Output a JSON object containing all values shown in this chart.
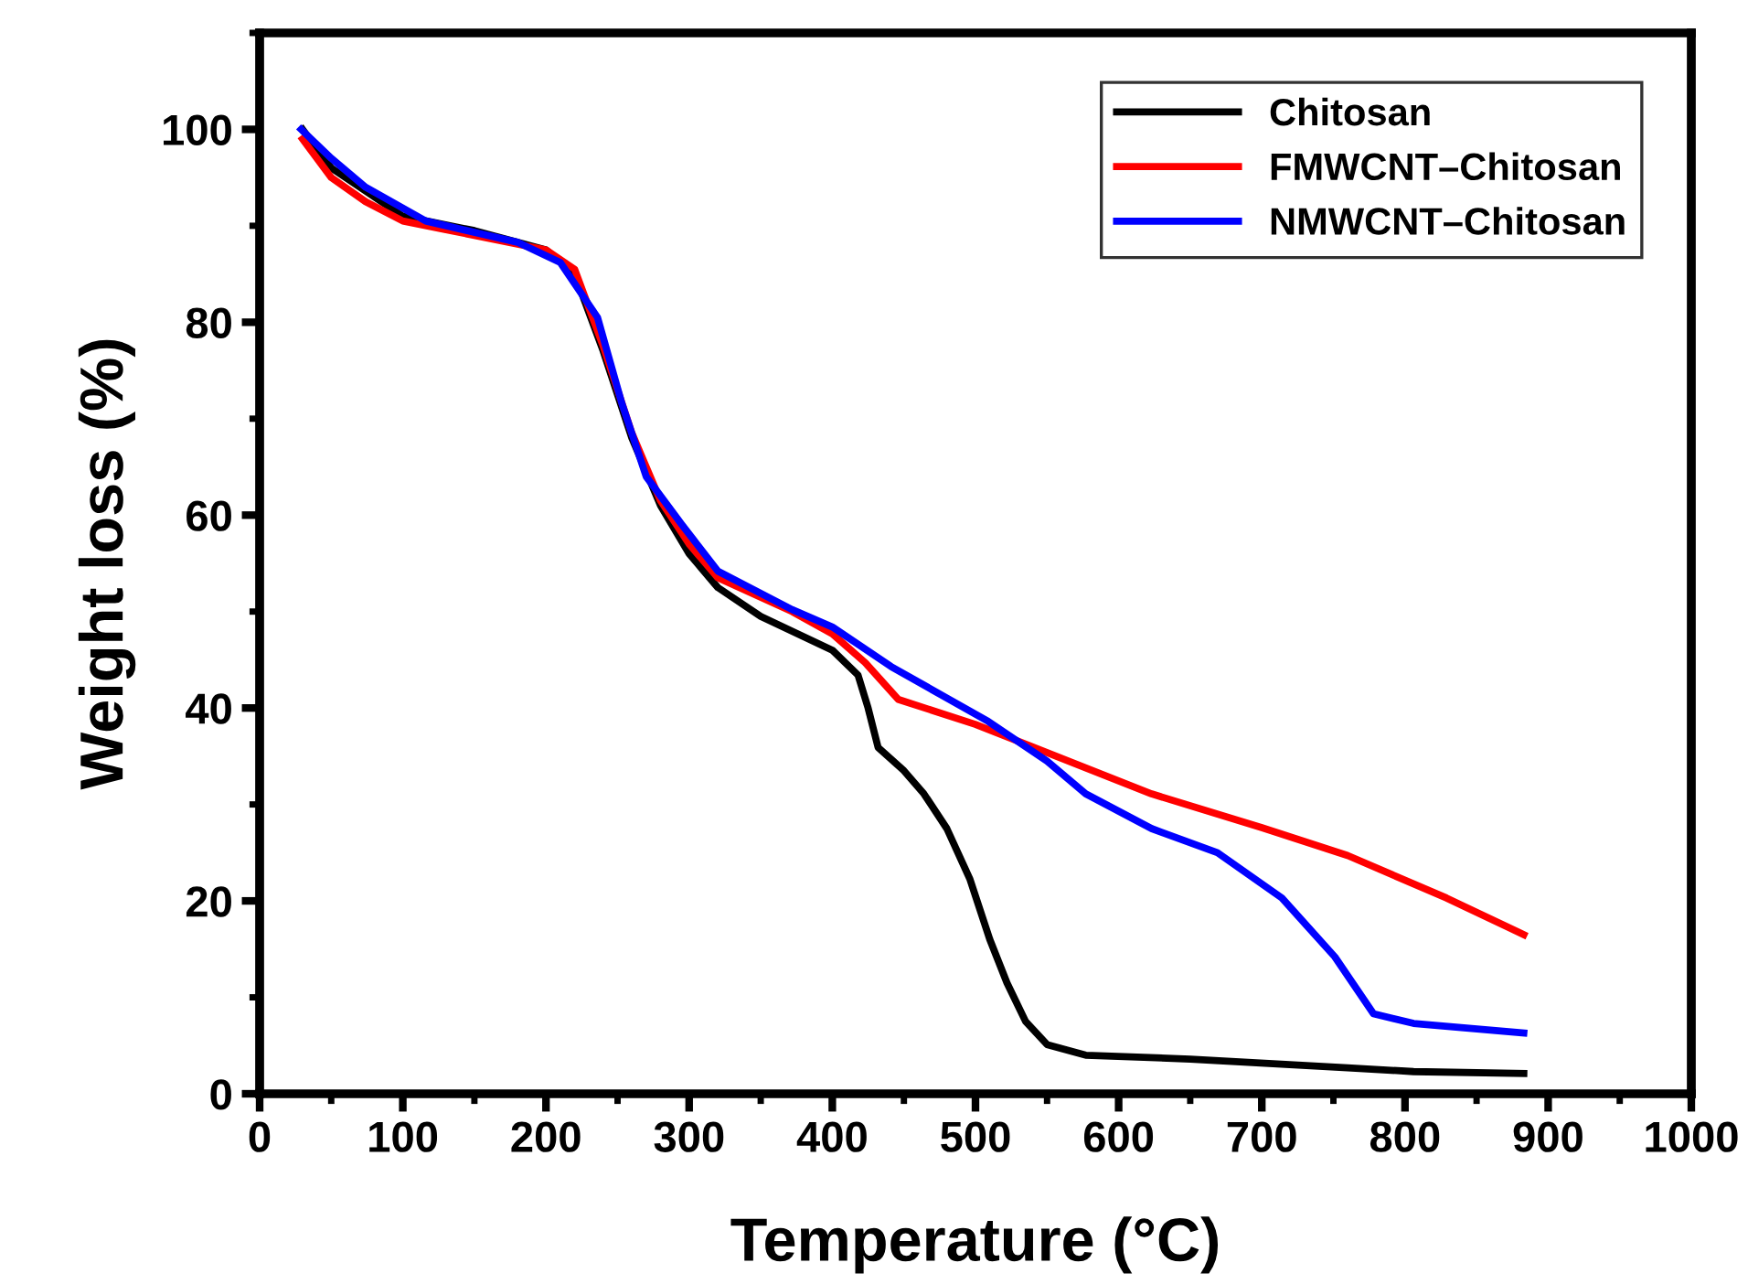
{
  "chart_data": {
    "type": "line",
    "xlabel": "Temperature (°C)",
    "ylabel": "Weight loss (%)",
    "xlim": [
      0,
      1000
    ],
    "ylim": [
      0,
      110
    ],
    "xticks": [
      0,
      100,
      200,
      300,
      400,
      500,
      600,
      700,
      800,
      900,
      1000
    ],
    "yticks": [
      0,
      20,
      40,
      60,
      80,
      100
    ],
    "grid": false,
    "legend": "top right",
    "line_style": "solid",
    "marker": "none",
    "series": [
      {
        "name": "Chitosan",
        "color": "#000000",
        "x": [
          30,
          50,
          100,
          150,
          200,
          220,
          240,
          260,
          280,
          300,
          320,
          350,
          400,
          418,
          425,
          432,
          450,
          464,
          480,
          496,
          510,
          522,
          535,
          550,
          577,
          650,
          760,
          806,
          883
        ],
        "values": [
          100,
          96,
          91,
          89.5,
          87.5,
          85,
          77,
          68,
          61,
          56,
          52.5,
          49.5,
          46,
          43.4,
          40,
          35.9,
          33.5,
          31.1,
          27.5,
          22.3,
          16,
          11.5,
          7.5,
          5.1,
          4,
          3.6,
          2.7,
          2.3,
          2.1
        ]
      },
      {
        "name": "FMWCNT–Chitosan",
        "color": "#ff0000",
        "x": [
          30,
          50,
          74,
          100,
          150,
          200,
          220,
          240,
          260,
          280,
          300,
          320,
          372,
          400,
          423,
          446,
          500,
          541,
          623,
          700,
          760,
          829,
          883
        ],
        "values": [
          99,
          95,
          92.5,
          90.5,
          89,
          87.5,
          85.5,
          77.5,
          68.5,
          61.5,
          57,
          53.5,
          50,
          47.7,
          44.7,
          40.9,
          38.3,
          35.9,
          31.1,
          27.6,
          24.7,
          20.3,
          16.5
        ]
      },
      {
        "name": "NMWCNT–Chitosan",
        "color": "#0000ff",
        "x": [
          29,
          50,
          74,
          116,
          180,
          210,
          236,
          253,
          270,
          295,
          320,
          372,
          400,
          441,
          509,
          550,
          577,
          623,
          669,
          714,
          751,
          778,
          806,
          883
        ],
        "values": [
          100,
          97,
          94,
          90.5,
          88.3,
          86.2,
          80.5,
          71.6,
          64,
          59,
          54.2,
          50.2,
          48.4,
          44.3,
          38.6,
          34.5,
          31.1,
          27.5,
          25,
          20.3,
          14.2,
          8.3,
          7.3,
          6.3
        ]
      }
    ]
  }
}
